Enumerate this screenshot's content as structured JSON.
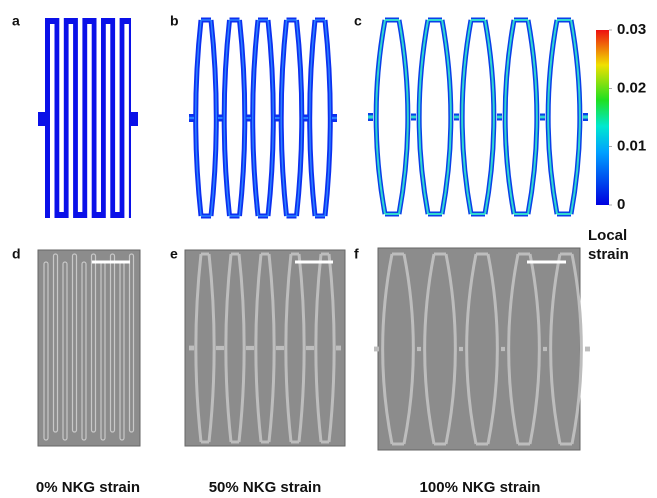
{
  "panels": [
    {
      "label": "a"
    },
    {
      "label": "b"
    },
    {
      "label": "c"
    },
    {
      "label": "d"
    },
    {
      "label": "e"
    },
    {
      "label": "f"
    }
  ],
  "colorbar": {
    "range": [
      0,
      0.03
    ],
    "ticks": [
      0,
      0.01,
      0.02,
      0.03
    ],
    "label": "Local strain"
  },
  "captions": [
    "0% NKG strain",
    "50% NKG strain",
    "100% NKG strain"
  ]
}
